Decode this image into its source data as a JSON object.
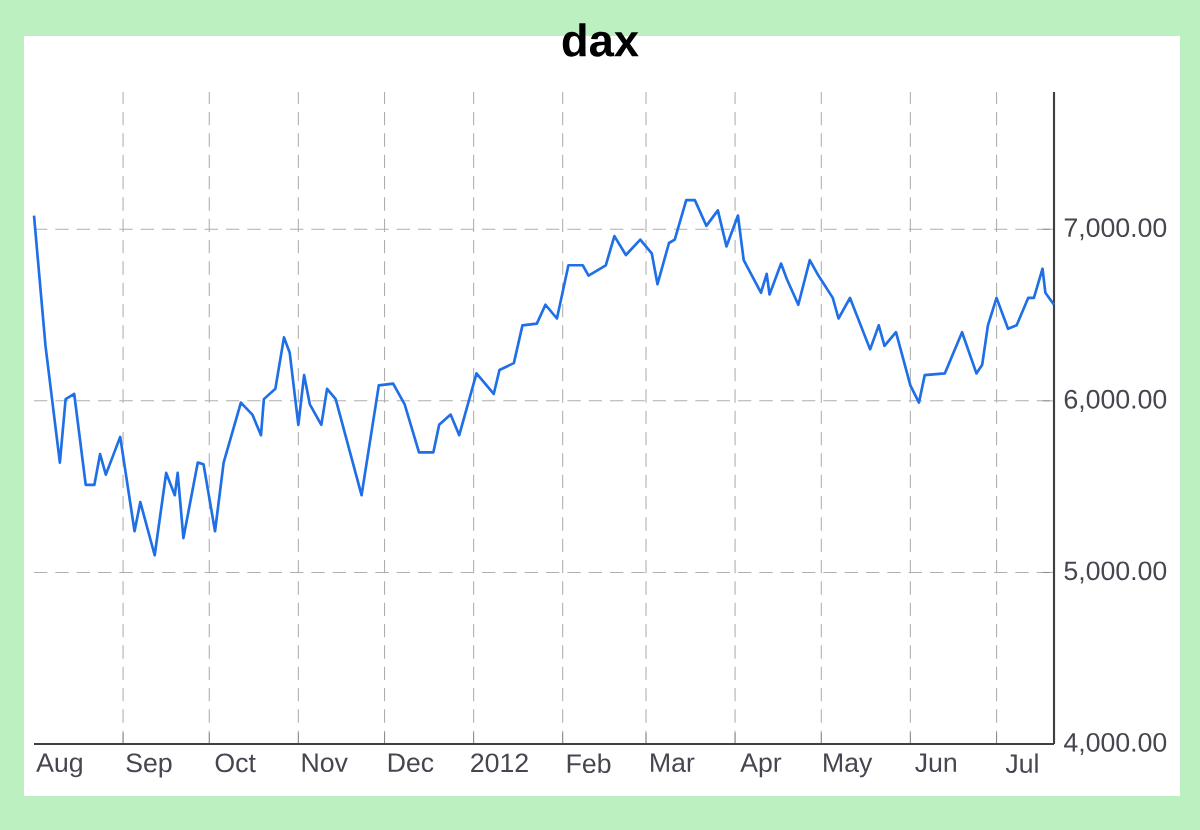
{
  "chart_data": {
    "type": "line",
    "title": "dax",
    "x": [
      "2011-08-01",
      "2011-08-05",
      "2011-08-10",
      "2011-08-12",
      "2011-08-15",
      "2011-08-19",
      "2011-08-22",
      "2011-08-24",
      "2011-08-26",
      "2011-08-31",
      "2011-09-05",
      "2011-09-07",
      "2011-09-12",
      "2011-09-16",
      "2011-09-19",
      "2011-09-20",
      "2011-09-22",
      "2011-09-27",
      "2011-09-29",
      "2011-10-03",
      "2011-10-06",
      "2011-10-12",
      "2011-10-16",
      "2011-10-19",
      "2011-10-20",
      "2011-10-24",
      "2011-10-27",
      "2011-10-29",
      "2011-11-01",
      "2011-11-03",
      "2011-11-05",
      "2011-11-09",
      "2011-11-11",
      "2011-11-14",
      "2011-11-23",
      "2011-11-29",
      "2011-12-04",
      "2011-12-08",
      "2011-12-13",
      "2011-12-18",
      "2011-12-20",
      "2011-12-24",
      "2011-12-27",
      "2012-01-02",
      "2012-01-08",
      "2012-01-10",
      "2012-01-15",
      "2012-01-18",
      "2012-01-23",
      "2012-01-26",
      "2012-01-30",
      "2012-02-03",
      "2012-02-08",
      "2012-02-10",
      "2012-02-16",
      "2012-02-19",
      "2012-02-23",
      "2012-02-28",
      "2012-03-03",
      "2012-03-05",
      "2012-03-09",
      "2012-03-11",
      "2012-03-15",
      "2012-03-18",
      "2012-03-22",
      "2012-03-26",
      "2012-03-29",
      "2012-04-02",
      "2012-04-04",
      "2012-04-10",
      "2012-04-12",
      "2012-04-13",
      "2012-04-17",
      "2012-04-19",
      "2012-04-23",
      "2012-04-27",
      "2012-04-30",
      "2012-05-05",
      "2012-05-07",
      "2012-05-11",
      "2012-05-18",
      "2012-05-21",
      "2012-05-23",
      "2012-05-27",
      "2012-06-01",
      "2012-06-04",
      "2012-06-06",
      "2012-06-13",
      "2012-06-16",
      "2012-06-19",
      "2012-06-24",
      "2012-06-26",
      "2012-06-28",
      "2012-07-01",
      "2012-07-05",
      "2012-07-08",
      "2012-07-12",
      "2012-07-14",
      "2012-07-17",
      "2012-07-18",
      "2012-07-21"
    ],
    "values": [
      7080,
      6320,
      5640,
      6010,
      6040,
      5510,
      5510,
      5690,
      5570,
      5790,
      5240,
      5410,
      5100,
      5580,
      5450,
      5580,
      5200,
      5640,
      5630,
      5240,
      5640,
      5990,
      5920,
      5800,
      6010,
      6070,
      6370,
      6280,
      5860,
      6150,
      5980,
      5860,
      6070,
      6010,
      5450,
      6090,
      6100,
      5980,
      5700,
      5700,
      5860,
      5920,
      5800,
      6160,
      6040,
      6180,
      6220,
      6440,
      6450,
      6560,
      6480,
      6790,
      6790,
      6730,
      6790,
      6960,
      6850,
      6940,
      6860,
      6680,
      6920,
      6940,
      7170,
      7170,
      7020,
      7110,
      6900,
      7080,
      6820,
      6630,
      6740,
      6620,
      6800,
      6710,
      6560,
      6820,
      6730,
      6600,
      6480,
      6600,
      6300,
      6440,
      6320,
      6400,
      6090,
      5990,
      6150,
      6160,
      6280,
      6400,
      6160,
      6210,
      6440,
      6600,
      6420,
      6440,
      6600,
      6600,
      6770,
      6630,
      6560
    ],
    "color": "#1f6fe6",
    "xlim": [
      "2011-08-01",
      "2012-07-21"
    ],
    "ylim": [
      4000,
      7800
    ],
    "xticks": [
      {
        "value": "2011-09-01",
        "label": null
      },
      {
        "value": "2011-10-01",
        "label": null
      },
      {
        "value": "2011-11-01",
        "label": null
      },
      {
        "value": "2011-12-01",
        "label": null
      },
      {
        "value": "2012-01-01",
        "label": null
      },
      {
        "value": "2012-02-01",
        "label": null
      },
      {
        "value": "2012-03-01",
        "label": null
      },
      {
        "value": "2012-04-01",
        "label": null
      },
      {
        "value": "2012-05-01",
        "label": null
      },
      {
        "value": "2012-06-01",
        "label": null
      },
      {
        "value": "2012-07-01",
        "label": null
      },
      {
        "value": "2011-08-10",
        "label": "Aug"
      },
      {
        "value": "2011-09-10",
        "label": "Sep"
      },
      {
        "value": "2011-10-10",
        "label": "Oct"
      },
      {
        "value": "2011-11-10",
        "label": "Nov"
      },
      {
        "value": "2011-12-10",
        "label": "Dec"
      },
      {
        "value": "2012-01-10",
        "label": "2012"
      },
      {
        "value": "2012-02-10",
        "label": "Feb"
      },
      {
        "value": "2012-03-10",
        "label": "Mar"
      },
      {
        "value": "2012-04-10",
        "label": "Apr"
      },
      {
        "value": "2012-05-10",
        "label": "May"
      },
      {
        "value": "2012-06-10",
        "label": "Jun"
      },
      {
        "value": "2012-07-10",
        "label": "Jul"
      }
    ],
    "yticks": [
      {
        "value": 4000,
        "label": "4,000.00"
      },
      {
        "value": 5000,
        "label": "5,000.00"
      },
      {
        "value": 6000,
        "label": "6,000.00"
      },
      {
        "value": 7000,
        "label": "7,000.00"
      }
    ],
    "grid": true
  }
}
